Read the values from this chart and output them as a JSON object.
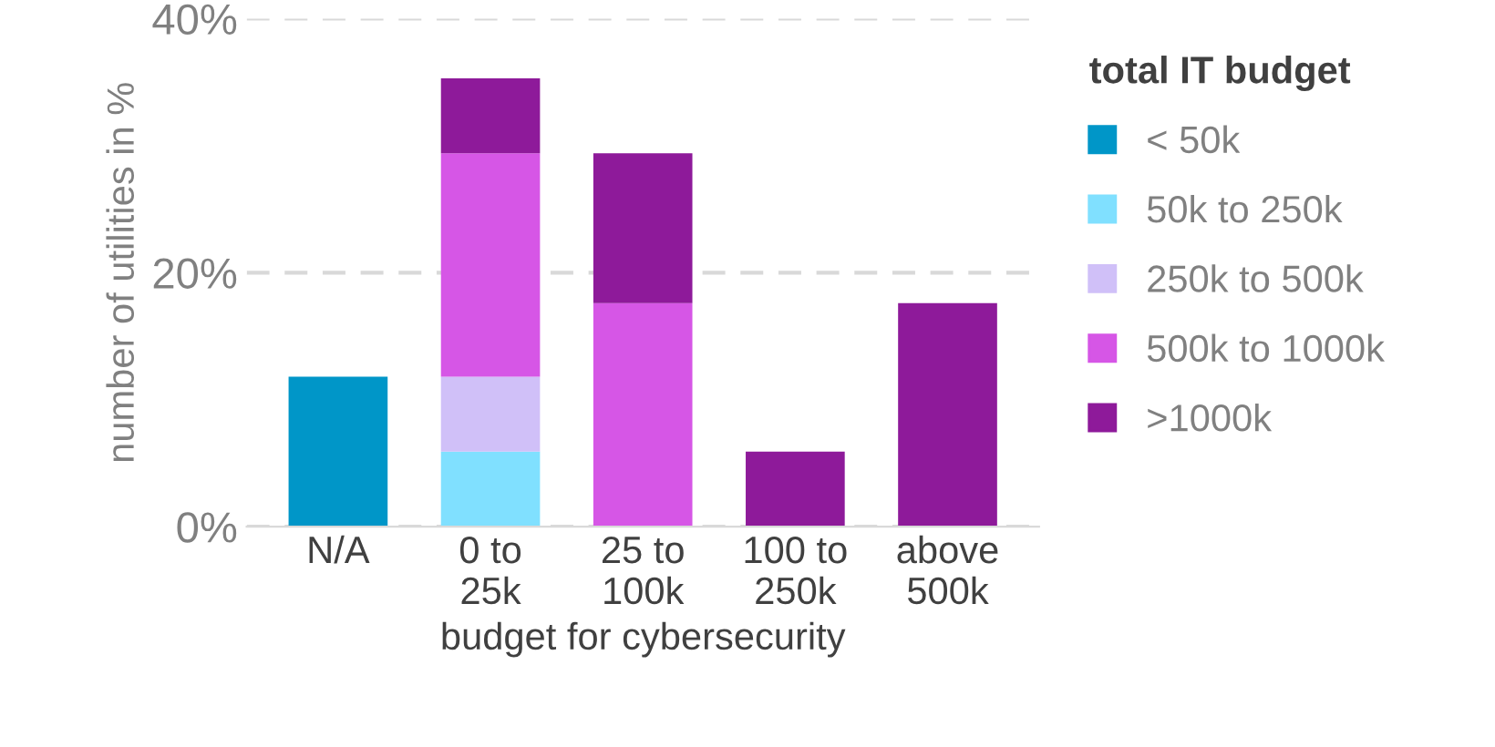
{
  "chart_data": {
    "type": "bar",
    "stacked": true,
    "xlabel": "budget for cybersecurity",
    "ylabel": "number of utilities in %",
    "legend_title": "total IT budget",
    "categories": [
      "N/A",
      "0 to\n25k",
      "25 to\n100k",
      "100 to\n250k",
      "above\n500k"
    ],
    "series": [
      {
        "name": "< 50k",
        "color": "#0096c8",
        "values": [
          11.8,
          0,
          0,
          0,
          0
        ]
      },
      {
        "name": "50k to 250k",
        "color": "#80e0ff",
        "values": [
          0,
          5.9,
          0,
          0,
          0
        ]
      },
      {
        "name": "250k to 500k",
        "color": "#d0c0f8",
        "values": [
          0,
          5.9,
          0,
          0,
          0
        ]
      },
      {
        "name": "500k to 1000k",
        "color": "#d656e6",
        "values": [
          0,
          17.6,
          17.6,
          0,
          0
        ]
      },
      {
        "name": ">1000k",
        "color": "#8e1a9a",
        "values": [
          0,
          5.9,
          11.8,
          5.9,
          17.6
        ]
      }
    ],
    "ylim": [
      0,
      40
    ],
    "yticks": [
      {
        "value": 0,
        "label": "0%"
      },
      {
        "value": 20,
        "label": "20%"
      },
      {
        "value": 40,
        "label": "40%"
      }
    ],
    "grid": "y",
    "legend": "right"
  }
}
